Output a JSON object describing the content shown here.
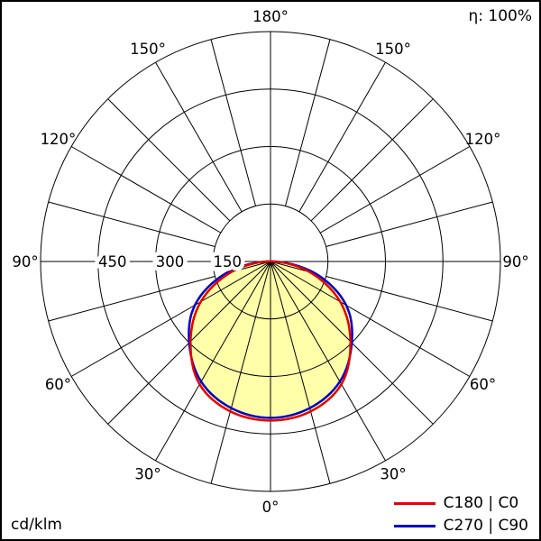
{
  "chart_data": {
    "type": "polar",
    "title": "",
    "units_label": "cd/klm",
    "efficiency_label": "η: 100%",
    "r_max": 600,
    "r_axis_ticks": [
      150,
      300,
      450,
      600
    ],
    "r_axis_tick_labels": [
      "150",
      "300",
      "450"
    ],
    "angle_grid_step_deg": 15,
    "angle_labels": [
      "0°",
      "30°",
      "60°",
      "90°",
      "120°",
      "150°",
      "180°"
    ],
    "angle_label_values": [
      0,
      30,
      60,
      90,
      120,
      150,
      180
    ],
    "grid_color": "#000000",
    "fill_color": "#ffffaa",
    "legend_position": "bottom-right",
    "series": [
      {
        "name": "C180 | C0",
        "color": "#e60000",
        "angles_deg": [
          -90,
          -75,
          -60,
          -45,
          -30,
          -15,
          0,
          15,
          30,
          45,
          60,
          75,
          90
        ],
        "values_cd_per_klm": [
          8,
          105,
          210,
          295,
          370,
          405,
          415,
          405,
          370,
          295,
          210,
          105,
          8
        ]
      },
      {
        "name": "C270 | C90",
        "color": "#0000cd",
        "angles_deg": [
          -90,
          -75,
          -60,
          -45,
          -30,
          -15,
          0,
          15,
          30,
          45,
          60,
          75,
          90
        ],
        "values_cd_per_klm": [
          8,
          122,
          228,
          300,
          362,
          396,
          408,
          396,
          362,
          300,
          228,
          122,
          8
        ]
      }
    ]
  }
}
